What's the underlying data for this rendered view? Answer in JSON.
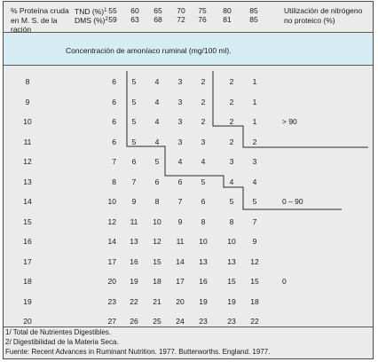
{
  "header": {
    "protein_label": "% Proteína cruda en M. S. de la ración",
    "tnd_label": "TND (%)",
    "tnd_sup": "1",
    "dms_label": "DMS (%)",
    "dms_sup": "2",
    "tnd_values": [
      "55",
      "60",
      "65",
      "70",
      "75",
      "80",
      "85"
    ],
    "dms_values": [
      "59",
      "63",
      "68",
      "72",
      "76",
      "81",
      "85"
    ],
    "npn_label": "Utilización de nitrógeno no proteico (%)"
  },
  "subheader": {
    "title": "Concentración de amoníaco ruminal (mg/100 ml)."
  },
  "rows": [
    {
      "protein": "8",
      "values": [
        "6",
        "5",
        "4",
        "3",
        "2",
        "2",
        "1"
      ]
    },
    {
      "protein": "9",
      "values": [
        "6",
        "5",
        "4",
        "3",
        "2",
        "2",
        "1"
      ]
    },
    {
      "protein": "10",
      "values": [
        "6",
        "5",
        "4",
        "3",
        "2",
        "2",
        "1"
      ]
    },
    {
      "protein": "11",
      "values": [
        "6",
        "5",
        "4",
        "3",
        "3",
        "2",
        "2"
      ]
    },
    {
      "protein": "12",
      "values": [
        "7",
        "6",
        "5",
        "4",
        "4",
        "3",
        "3"
      ]
    },
    {
      "protein": "13",
      "values": [
        "8",
        "7",
        "6",
        "6",
        "5",
        "4",
        "4"
      ]
    },
    {
      "protein": "14",
      "values": [
        "10",
        "9",
        "8",
        "7",
        "6",
        "5",
        "5"
      ]
    },
    {
      "protein": "15",
      "values": [
        "12",
        "11",
        "10",
        "9",
        "8",
        "8",
        "7"
      ]
    },
    {
      "protein": "16",
      "values": [
        "14",
        "13",
        "12",
        "11",
        "10",
        "10",
        "9"
      ]
    },
    {
      "protein": "17",
      "values": [
        "17",
        "16",
        "15",
        "14",
        "13",
        "13",
        "12"
      ]
    },
    {
      "protein": "18",
      "values": [
        "20",
        "19",
        "18",
        "17",
        "16",
        "15",
        "15"
      ]
    },
    {
      "protein": "19",
      "values": [
        "23",
        "22",
        "21",
        "20",
        "19",
        "19",
        "18"
      ]
    },
    {
      "protein": "20",
      "values": [
        "27",
        "26",
        "25",
        "24",
        "23",
        "23",
        "22"
      ]
    }
  ],
  "npn_values": [
    {
      "row_index": 2,
      "text": "> 90"
    },
    {
      "row_index": 6,
      "text": "0 – 90"
    },
    {
      "row_index": 10,
      "text": "0"
    }
  ],
  "footnotes": [
    "1/ Total de Nutrientes Digestibles.",
    "2/ Digestibilidad de la Materia Seca.",
    "Fuente: Recent Advances in Ruminant Nutrition. 1977. Butterworths. England. 1977."
  ]
}
